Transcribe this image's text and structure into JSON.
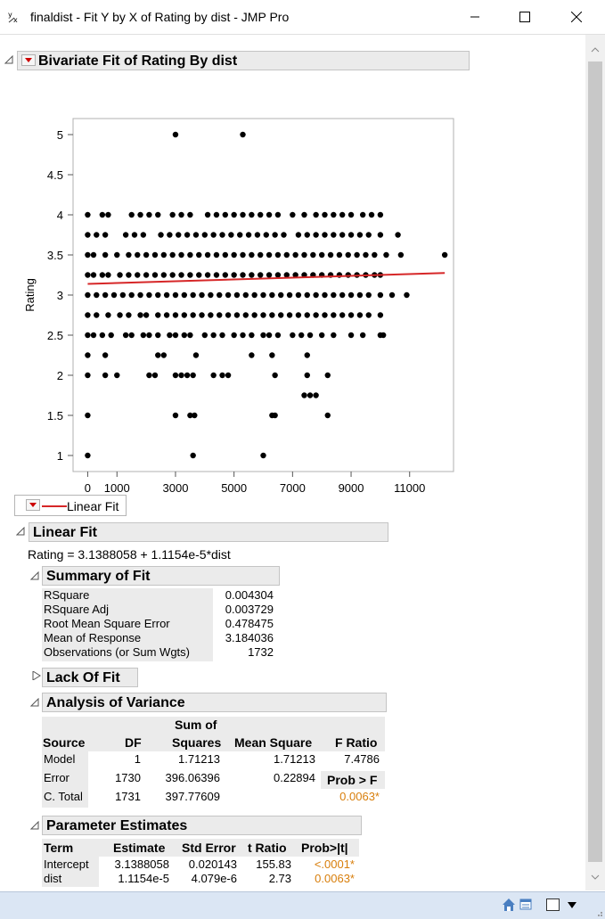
{
  "window": {
    "title": "finaldist - Fit Y by X of Rating by dist - JMP Pro",
    "icon": "y-by-x-icon"
  },
  "bivariate": {
    "header": "Bivariate Fit of Rating By dist",
    "legend_label": "Linear Fit"
  },
  "chart_data": {
    "type": "scatter",
    "xlabel": "dist",
    "ylabel": "Rating",
    "xlim": [
      -500,
      12500
    ],
    "ylim": [
      0.8,
      5.2
    ],
    "x_ticks": [
      "0",
      "1000",
      "3000",
      "5000",
      "7000",
      "9000",
      "11000"
    ],
    "x_tick_values": [
      0,
      1000,
      3000,
      5000,
      7000,
      9000,
      11000
    ],
    "y_ticks": [
      "1",
      "1.5",
      "2",
      "2.5",
      "3",
      "3.5",
      "4",
      "4.5",
      "5"
    ],
    "y_tick_values": [
      1,
      1.5,
      2,
      2.5,
      3,
      3.5,
      4,
      4.5,
      5
    ],
    "fit_line": {
      "name": "Linear Fit",
      "color": "#d62728",
      "x": [
        0,
        12200
      ],
      "y": [
        3.1388,
        3.2749
      ]
    },
    "points": [
      [
        0,
        1
      ],
      [
        3600,
        1
      ],
      [
        6000,
        1
      ],
      [
        0,
        1.5
      ],
      [
        3000,
        1.5
      ],
      [
        3500,
        1.5
      ],
      [
        3650,
        1.5
      ],
      [
        6300,
        1.5
      ],
      [
        6400,
        1.5
      ],
      [
        8200,
        1.5
      ],
      [
        7400,
        1.75
      ],
      [
        7600,
        1.75
      ],
      [
        7800,
        1.75
      ],
      [
        0,
        2
      ],
      [
        600,
        2
      ],
      [
        1000,
        2
      ],
      [
        2100,
        2
      ],
      [
        2300,
        2
      ],
      [
        3000,
        2
      ],
      [
        3200,
        2
      ],
      [
        3400,
        2
      ],
      [
        3600,
        2
      ],
      [
        4300,
        2
      ],
      [
        4600,
        2
      ],
      [
        4800,
        2
      ],
      [
        6400,
        2
      ],
      [
        7500,
        2
      ],
      [
        8200,
        2
      ],
      [
        0,
        2.25
      ],
      [
        600,
        2.25
      ],
      [
        2400,
        2.25
      ],
      [
        2600,
        2.25
      ],
      [
        3700,
        2.25
      ],
      [
        5600,
        2.25
      ],
      [
        6300,
        2.25
      ],
      [
        7500,
        2.25
      ],
      [
        0,
        2.5
      ],
      [
        200,
        2.5
      ],
      [
        500,
        2.5
      ],
      [
        800,
        2.5
      ],
      [
        1300,
        2.5
      ],
      [
        1500,
        2.5
      ],
      [
        1900,
        2.5
      ],
      [
        2100,
        2.5
      ],
      [
        2400,
        2.5
      ],
      [
        2800,
        2.5
      ],
      [
        3000,
        2.5
      ],
      [
        3300,
        2.5
      ],
      [
        3500,
        2.5
      ],
      [
        4000,
        2.5
      ],
      [
        4300,
        2.5
      ],
      [
        4600,
        2.5
      ],
      [
        5000,
        2.5
      ],
      [
        5300,
        2.5
      ],
      [
        5600,
        2.5
      ],
      [
        6000,
        2.5
      ],
      [
        6200,
        2.5
      ],
      [
        6500,
        2.5
      ],
      [
        7000,
        2.5
      ],
      [
        7300,
        2.5
      ],
      [
        7600,
        2.5
      ],
      [
        8000,
        2.5
      ],
      [
        8400,
        2.5
      ],
      [
        9000,
        2.5
      ],
      [
        9400,
        2.5
      ],
      [
        10000,
        2.5
      ],
      [
        10100,
        2.5
      ],
      [
        0,
        2.75
      ],
      [
        300,
        2.75
      ],
      [
        700,
        2.75
      ],
      [
        1100,
        2.75
      ],
      [
        1400,
        2.75
      ],
      [
        1800,
        2.75
      ],
      [
        2000,
        2.75
      ],
      [
        2400,
        2.75
      ],
      [
        2700,
        2.75
      ],
      [
        3000,
        2.75
      ],
      [
        3300,
        2.75
      ],
      [
        3600,
        2.75
      ],
      [
        3900,
        2.75
      ],
      [
        4200,
        2.75
      ],
      [
        4500,
        2.75
      ],
      [
        4800,
        2.75
      ],
      [
        5100,
        2.75
      ],
      [
        5400,
        2.75
      ],
      [
        5700,
        2.75
      ],
      [
        6000,
        2.75
      ],
      [
        6300,
        2.75
      ],
      [
        6600,
        2.75
      ],
      [
        6900,
        2.75
      ],
      [
        7200,
        2.75
      ],
      [
        7500,
        2.75
      ],
      [
        7800,
        2.75
      ],
      [
        8100,
        2.75
      ],
      [
        8400,
        2.75
      ],
      [
        8700,
        2.75
      ],
      [
        9000,
        2.75
      ],
      [
        9300,
        2.75
      ],
      [
        9600,
        2.75
      ],
      [
        10000,
        2.75
      ],
      [
        0,
        3
      ],
      [
        300,
        3
      ],
      [
        600,
        3
      ],
      [
        900,
        3
      ],
      [
        1200,
        3
      ],
      [
        1500,
        3
      ],
      [
        1800,
        3
      ],
      [
        2100,
        3
      ],
      [
        2400,
        3
      ],
      [
        2700,
        3
      ],
      [
        3000,
        3
      ],
      [
        3300,
        3
      ],
      [
        3600,
        3
      ],
      [
        3900,
        3
      ],
      [
        4200,
        3
      ],
      [
        4500,
        3
      ],
      [
        4800,
        3
      ],
      [
        5100,
        3
      ],
      [
        5400,
        3
      ],
      [
        5700,
        3
      ],
      [
        6000,
        3
      ],
      [
        6300,
        3
      ],
      [
        6600,
        3
      ],
      [
        6900,
        3
      ],
      [
        7200,
        3
      ],
      [
        7500,
        3
      ],
      [
        7800,
        3
      ],
      [
        8100,
        3
      ],
      [
        8400,
        3
      ],
      [
        8700,
        3
      ],
      [
        9000,
        3
      ],
      [
        9300,
        3
      ],
      [
        9600,
        3
      ],
      [
        10000,
        3
      ],
      [
        10400,
        3
      ],
      [
        10900,
        3
      ],
      [
        0,
        3.25
      ],
      [
        200,
        3.25
      ],
      [
        500,
        3.25
      ],
      [
        700,
        3.25
      ],
      [
        1100,
        3.25
      ],
      [
        1400,
        3.25
      ],
      [
        1700,
        3.25
      ],
      [
        2000,
        3.25
      ],
      [
        2300,
        3.25
      ],
      [
        2600,
        3.25
      ],
      [
        2900,
        3.25
      ],
      [
        3200,
        3.25
      ],
      [
        3500,
        3.25
      ],
      [
        3800,
        3.25
      ],
      [
        4100,
        3.25
      ],
      [
        4400,
        3.25
      ],
      [
        4700,
        3.25
      ],
      [
        5000,
        3.25
      ],
      [
        5300,
        3.25
      ],
      [
        5600,
        3.25
      ],
      [
        5900,
        3.25
      ],
      [
        6200,
        3.25
      ],
      [
        6500,
        3.25
      ],
      [
        6800,
        3.25
      ],
      [
        7100,
        3.25
      ],
      [
        7400,
        3.25
      ],
      [
        7700,
        3.25
      ],
      [
        8000,
        3.25
      ],
      [
        8300,
        3.25
      ],
      [
        8600,
        3.25
      ],
      [
        8900,
        3.25
      ],
      [
        9200,
        3.25
      ],
      [
        9500,
        3.25
      ],
      [
        9800,
        3.25
      ],
      [
        10000,
        3.25
      ],
      [
        0,
        3.5
      ],
      [
        200,
        3.5
      ],
      [
        600,
        3.5
      ],
      [
        1000,
        3.5
      ],
      [
        1400,
        3.5
      ],
      [
        1700,
        3.5
      ],
      [
        2000,
        3.5
      ],
      [
        2300,
        3.5
      ],
      [
        2600,
        3.5
      ],
      [
        2900,
        3.5
      ],
      [
        3200,
        3.5
      ],
      [
        3500,
        3.5
      ],
      [
        3800,
        3.5
      ],
      [
        4100,
        3.5
      ],
      [
        4400,
        3.5
      ],
      [
        4700,
        3.5
      ],
      [
        5000,
        3.5
      ],
      [
        5300,
        3.5
      ],
      [
        5600,
        3.5
      ],
      [
        5900,
        3.5
      ],
      [
        6200,
        3.5
      ],
      [
        6500,
        3.5
      ],
      [
        6800,
        3.5
      ],
      [
        7100,
        3.5
      ],
      [
        7400,
        3.5
      ],
      [
        7700,
        3.5
      ],
      [
        8000,
        3.5
      ],
      [
        8300,
        3.5
      ],
      [
        8600,
        3.5
      ],
      [
        8900,
        3.5
      ],
      [
        9200,
        3.5
      ],
      [
        9500,
        3.5
      ],
      [
        9800,
        3.5
      ],
      [
        10200,
        3.5
      ],
      [
        10700,
        3.5
      ],
      [
        12200,
        3.5
      ],
      [
        0,
        3.75
      ],
      [
        300,
        3.75
      ],
      [
        600,
        3.75
      ],
      [
        1300,
        3.75
      ],
      [
        1600,
        3.75
      ],
      [
        1900,
        3.75
      ],
      [
        2500,
        3.75
      ],
      [
        2800,
        3.75
      ],
      [
        3100,
        3.75
      ],
      [
        3400,
        3.75
      ],
      [
        3700,
        3.75
      ],
      [
        4000,
        3.75
      ],
      [
        4300,
        3.75
      ],
      [
        4600,
        3.75
      ],
      [
        4900,
        3.75
      ],
      [
        5200,
        3.75
      ],
      [
        5500,
        3.75
      ],
      [
        5800,
        3.75
      ],
      [
        6100,
        3.75
      ],
      [
        6400,
        3.75
      ],
      [
        6700,
        3.75
      ],
      [
        7200,
        3.75
      ],
      [
        7500,
        3.75
      ],
      [
        7800,
        3.75
      ],
      [
        8100,
        3.75
      ],
      [
        8400,
        3.75
      ],
      [
        8700,
        3.75
      ],
      [
        9000,
        3.75
      ],
      [
        9300,
        3.75
      ],
      [
        9600,
        3.75
      ],
      [
        10000,
        3.75
      ],
      [
        10600,
        3.75
      ],
      [
        0,
        4
      ],
      [
        500,
        4
      ],
      [
        700,
        4
      ],
      [
        1500,
        4
      ],
      [
        1800,
        4
      ],
      [
        2100,
        4
      ],
      [
        2400,
        4
      ],
      [
        2900,
        4
      ],
      [
        3200,
        4
      ],
      [
        3500,
        4
      ],
      [
        4100,
        4
      ],
      [
        4400,
        4
      ],
      [
        4700,
        4
      ],
      [
        5000,
        4
      ],
      [
        5300,
        4
      ],
      [
        5600,
        4
      ],
      [
        5900,
        4
      ],
      [
        6200,
        4
      ],
      [
        6500,
        4
      ],
      [
        7000,
        4
      ],
      [
        7400,
        4
      ],
      [
        7800,
        4
      ],
      [
        8100,
        4
      ],
      [
        8400,
        4
      ],
      [
        8700,
        4
      ],
      [
        9000,
        4
      ],
      [
        9400,
        4
      ],
      [
        9700,
        4
      ],
      [
        10000,
        4
      ],
      [
        3000,
        5
      ],
      [
        5300,
        5
      ]
    ]
  },
  "linear_fit": {
    "header": "Linear Fit",
    "equation": "Rating = 3.1388058 + 1.1154e-5*dist",
    "summary": {
      "header": "Summary of Fit",
      "rows": [
        {
          "label": "RSquare",
          "value": "0.004304"
        },
        {
          "label": "RSquare Adj",
          "value": "0.003729"
        },
        {
          "label": "Root Mean Square Error",
          "value": "0.478475"
        },
        {
          "label": "Mean of Response",
          "value": "3.184036"
        },
        {
          "label": "Observations (or Sum Wgts)",
          "value": "1732"
        }
      ]
    },
    "lack_of_fit": {
      "header": "Lack Of Fit"
    },
    "anova": {
      "header": "Analysis of Variance",
      "col_source": "Source",
      "col_df": "DF",
      "col_ss_top": "Sum of",
      "col_ss": "Squares",
      "col_ms": "Mean Square",
      "col_f": "F Ratio",
      "model": {
        "source": "Model",
        "df": "1",
        "ss": "1.71213",
        "ms": "1.71213",
        "f": "7.4786"
      },
      "error": {
        "source": "Error",
        "df": "1730",
        "ss": "396.06396",
        "ms": "0.22894",
        "probf_label": "Prob > F"
      },
      "total": {
        "source": "C. Total",
        "df": "1731",
        "ss": "397.77609",
        "probf": "0.0063*"
      }
    },
    "params": {
      "header": "Parameter Estimates",
      "col_term": "Term",
      "col_est": "Estimate",
      "col_se": "Std Error",
      "col_t": "t Ratio",
      "col_p": "Prob>|t|",
      "rows": [
        {
          "term": "Intercept",
          "est": "3.1388058",
          "se": "0.020143",
          "t": "155.83",
          "p": "<.0001*"
        },
        {
          "term": "dist",
          "est": "1.1154e-5",
          "se": "4.079e-6",
          "t": "2.73",
          "p": "0.0063*"
        }
      ]
    }
  },
  "colors": {
    "fit_line": "#d62728",
    "significant": "#d87e0b",
    "status_bar": "#dbe6f4"
  }
}
